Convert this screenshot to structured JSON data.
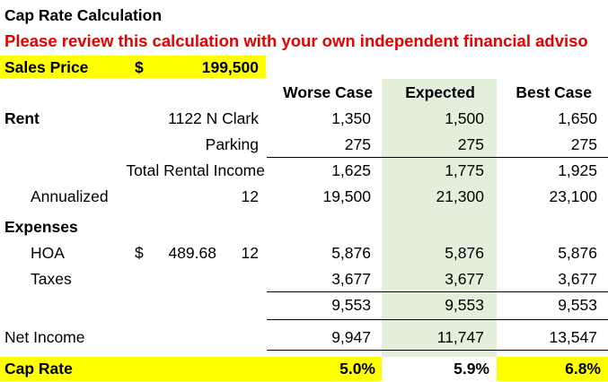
{
  "title": "Cap Rate Calculation",
  "warning": "Please review this calculation with your own independent financial adviso",
  "sales_price": {
    "label": "Sales Price",
    "currency": "$",
    "value": "199,500"
  },
  "columns": {
    "worse": "Worse Case",
    "expected": "Expected",
    "best": "Best Case"
  },
  "rent": {
    "label": "Rent",
    "address": "1122 N Clark",
    "parking_label": "Parking",
    "total_label": "Total Rental Income",
    "annualized_label": "Annualized",
    "annualized_multiplier": "12",
    "rent_values": [
      "1,350",
      "1,500",
      "1,650"
    ],
    "parking_values": [
      "275",
      "275",
      "275"
    ],
    "total_values": [
      "1,625",
      "1,775",
      "1,925"
    ],
    "annualized_values": [
      "19,500",
      "21,300",
      "23,100"
    ]
  },
  "expenses": {
    "label": "Expenses",
    "hoa_label": "HOA",
    "hoa_currency": "$",
    "hoa_monthly": "489.68",
    "hoa_multiplier": "12",
    "hoa_values": [
      "5,876",
      "5,876",
      "5,876"
    ],
    "taxes_label": "Taxes",
    "taxes_values": [
      "3,677",
      "3,677",
      "3,677"
    ],
    "total_values": [
      "9,553",
      "9,553",
      "9,553"
    ]
  },
  "net_income": {
    "label": "Net Income",
    "values": [
      "9,947",
      "11,747",
      "13,547"
    ]
  },
  "cap_rate": {
    "label": "Cap Rate",
    "values": [
      "5.0%",
      "5.9%",
      "6.8%"
    ]
  },
  "colors": {
    "highlight": "#ffff00",
    "expected_column": "#e2efda",
    "warning": "#e60000"
  }
}
